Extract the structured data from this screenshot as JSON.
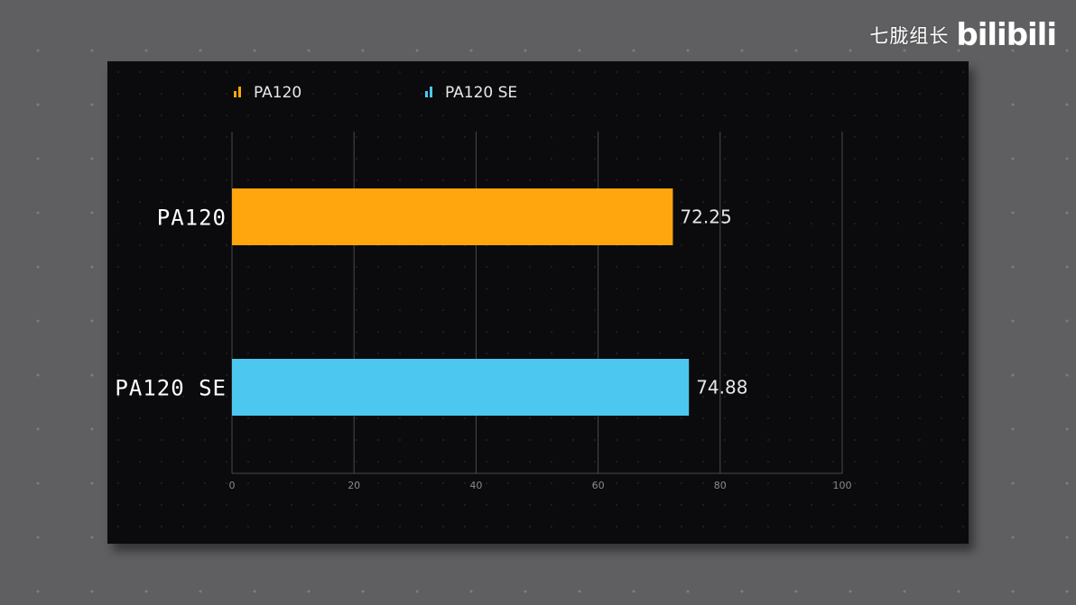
{
  "watermark": {
    "channel_name": "七胧组长",
    "platform_logo": "bilibili"
  },
  "colors": {
    "background": "#5f5f61",
    "panel": "#0b0a0c",
    "grid": "#4a4a4e",
    "axis_text": "#8a8a8a"
  },
  "chart_data": {
    "type": "bar",
    "orientation": "horizontal",
    "categories": [
      "PA120",
      "PA120 SE"
    ],
    "values": [
      72.25,
      74.88
    ],
    "value_labels": [
      "72.25",
      "74.88"
    ],
    "series": [
      {
        "name": "PA120",
        "color": "#ffa50d"
      },
      {
        "name": "PA120 SE",
        "color": "#4cc8f0"
      }
    ],
    "bar_colors": [
      "#ffa50d",
      "#4cc8f0"
    ],
    "xlim": [
      0,
      100
    ],
    "xticks": [
      0,
      20,
      40,
      60,
      80,
      100
    ],
    "grid": true,
    "legend": "top-left"
  }
}
